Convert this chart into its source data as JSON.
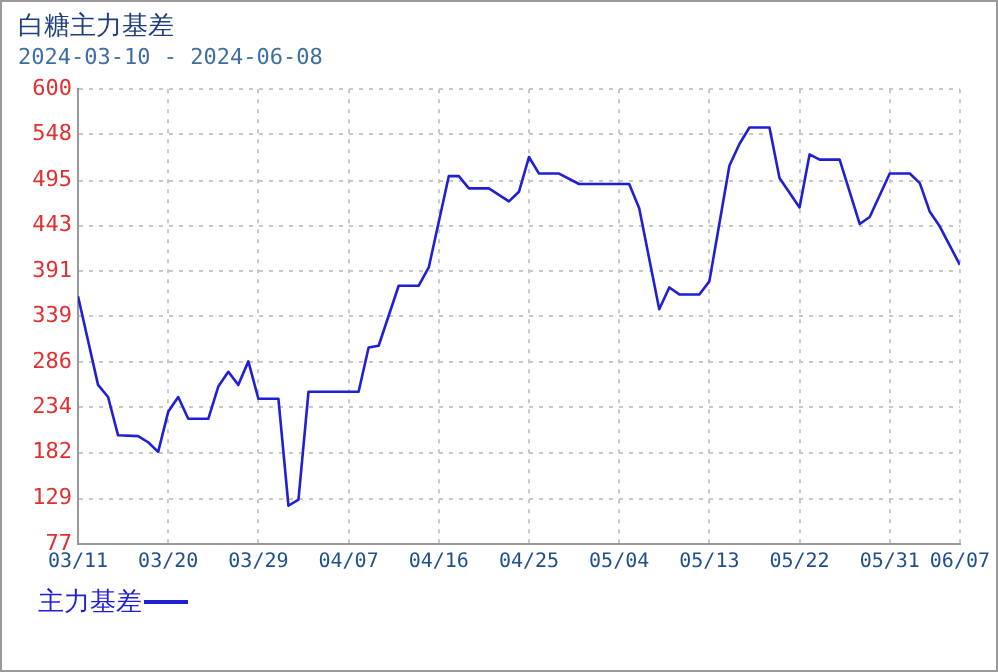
{
  "chart_data": {
    "type": "line",
    "title": "白糖主力基差",
    "subtitle": "2024-03-10 - 2024-06-08",
    "x": [
      "2024-03-11",
      "2024-03-13",
      "2024-03-14",
      "2024-03-15",
      "2024-03-17",
      "2024-03-18",
      "2024-03-19",
      "2024-03-20",
      "2024-03-21",
      "2024-03-22",
      "2024-03-24",
      "2024-03-25",
      "2024-03-26",
      "2024-03-27",
      "2024-03-28",
      "2024-03-29",
      "2024-03-31",
      "2024-04-01",
      "2024-04-02",
      "2024-04-03",
      "2024-04-08",
      "2024-04-09",
      "2024-04-10",
      "2024-04-12",
      "2024-04-14",
      "2024-04-15",
      "2024-04-17",
      "2024-04-18",
      "2024-04-19",
      "2024-04-21",
      "2024-04-23",
      "2024-04-24",
      "2024-04-25",
      "2024-04-26",
      "2024-04-28",
      "2024-04-30",
      "2024-05-05",
      "2024-05-06",
      "2024-05-08",
      "2024-05-09",
      "2024-05-10",
      "2024-05-12",
      "2024-05-13",
      "2024-05-15",
      "2024-05-16",
      "2024-05-17",
      "2024-05-19",
      "2024-05-20",
      "2024-05-22",
      "2024-05-23",
      "2024-05-24",
      "2024-05-26",
      "2024-05-28",
      "2024-05-29",
      "2024-05-31",
      "2024-06-02",
      "2024-06-03",
      "2024-06-04",
      "2024-06-05",
      "2024-06-07"
    ],
    "series": [
      {
        "name": "主力基差",
        "color": "#1f1fd6",
        "values": [
          362,
          260,
          246,
          202,
          201,
          194,
          183,
          229,
          246,
          221,
          221,
          258,
          275,
          260,
          287,
          244,
          244,
          121,
          128,
          252,
          252,
          303,
          305,
          374,
          374,
          395,
          500,
          500,
          486,
          486,
          471,
          482,
          522,
          503,
          503,
          491,
          491,
          463,
          347,
          372,
          364,
          364,
          379,
          512,
          537,
          556,
          556,
          498,
          464,
          525,
          519,
          519,
          445,
          453,
          503,
          503,
          492,
          459,
          442,
          398
        ]
      }
    ],
    "xlim": [
      "2024-03-11",
      "2024-06-07"
    ],
    "xticks": [
      {
        "value": "2024-03-11",
        "label": "03/11"
      },
      {
        "value": "2024-03-20",
        "label": "03/20"
      },
      {
        "value": "2024-03-29",
        "label": "03/29"
      },
      {
        "value": "2024-04-07",
        "label": "04/07"
      },
      {
        "value": "2024-04-16",
        "label": "04/16"
      },
      {
        "value": "2024-04-25",
        "label": "04/25"
      },
      {
        "value": "2024-05-04",
        "label": "05/04"
      },
      {
        "value": "2024-05-13",
        "label": "05/13"
      },
      {
        "value": "2024-05-22",
        "label": "05/22"
      },
      {
        "value": "2024-05-31",
        "label": "05/31"
      },
      {
        "value": "2024-06-07",
        "label": "06/07"
      }
    ],
    "ylim": [
      77,
      600
    ],
    "yticks": [
      77,
      129,
      182,
      234,
      286,
      339,
      391,
      443,
      495,
      548,
      600
    ],
    "grid": true,
    "legend": "bottom left",
    "marker": "none",
    "line_style": "solid"
  }
}
